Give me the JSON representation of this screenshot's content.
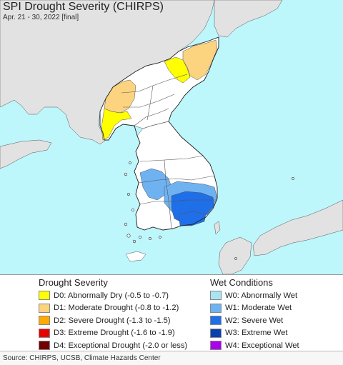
{
  "map": {
    "title": "SPI Drought Severity (CHIRPS)",
    "subtitle": "Apr. 21 - 30, 2022 [final]",
    "colors": {
      "sea": "#bdf6fb",
      "land_outside": "#e2e2e2",
      "land_normal": "#ffffff",
      "borders": "#555555"
    },
    "icons": []
  },
  "legend": {
    "drought": {
      "heading": "Drought Severity",
      "items": [
        {
          "label": "D0: Abnormally Dry (-0.5 to -0.7)",
          "color": "#ffff00"
        },
        {
          "label": "D1: Moderate Drought (-0.8 to -1.2)",
          "color": "#fcd37f"
        },
        {
          "label": "D2: Severe Drought (-1.3 to -1.5)",
          "color": "#ffaa00"
        },
        {
          "label": "D3: Extreme Drought (-1.6 to -1.9)",
          "color": "#e60000"
        },
        {
          "label": "D4: Exceptional Drought (-2.0 or less)",
          "color": "#730000"
        }
      ]
    },
    "wet": {
      "heading": "Wet Conditions",
      "items": [
        {
          "label": "W0: Abnormally Wet",
          "color": "#aae4f4"
        },
        {
          "label": "W1: Moderate Wet",
          "color": "#6fb2f2"
        },
        {
          "label": "W2: Severe Wet",
          "color": "#1e6fe8"
        },
        {
          "label": "W3: Extreme Wet",
          "color": "#0a3fb0"
        },
        {
          "label": "W4: Exceptional Wet",
          "color": "#aa00ee"
        }
      ]
    }
  },
  "footer": {
    "source": "Source: CHIRPS, UCSB, Climate Hazards Center"
  }
}
